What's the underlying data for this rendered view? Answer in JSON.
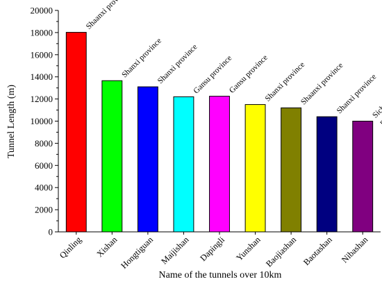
{
  "chart_data": {
    "type": "bar",
    "title": "",
    "xlabel": "Name of the tunnels over 10km",
    "ylabel": "Tunnel Length (m)",
    "ylim": [
      0,
      20000
    ],
    "yticks": [
      0,
      2000,
      4000,
      6000,
      8000,
      10000,
      12000,
      14000,
      16000,
      18000,
      20000
    ],
    "grid": false,
    "legend": "none",
    "categories": [
      "Qinling",
      "Xishan",
      "Hongtiguan",
      "Maijishan",
      "Dapingli",
      "Yunshan",
      "Baojiashan",
      "Baotashan",
      "Nibashan"
    ],
    "values": [
      18020,
      13654,
      13100,
      12200,
      12250,
      11500,
      11200,
      10400,
      10000
    ],
    "colors": [
      "#ff0000",
      "#00ff00",
      "#0000ff",
      "#00ffff",
      "#ff00ff",
      "#ffff00",
      "#808000",
      "#000080",
      "#800080"
    ],
    "annotations": [
      [
        "Shaanxi province"
      ],
      [
        "Shanxi province"
      ],
      [
        "Shanxi province"
      ],
      [
        "Gansu province"
      ],
      [
        "Gansu province"
      ],
      [
        "Shanxi province"
      ],
      [
        "Shaanxi province"
      ],
      [
        "Shanxi province"
      ],
      [
        "Sichuan",
        "province"
      ]
    ]
  }
}
